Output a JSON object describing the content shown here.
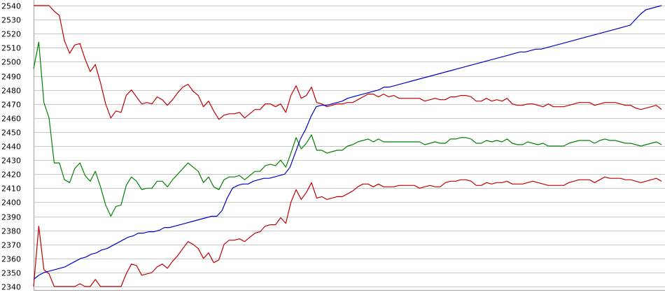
{
  "chart_data": {
    "type": "line",
    "title": "",
    "xlabel": "",
    "ylabel": "",
    "ylim": [
      2340,
      2540
    ],
    "y_ticks": [
      2340,
      2350,
      2360,
      2370,
      2380,
      2390,
      2400,
      2410,
      2420,
      2430,
      2440,
      2450,
      2460,
      2470,
      2480,
      2490,
      2500,
      2510,
      2520,
      2530,
      2540
    ],
    "x_range": [
      0,
      127
    ],
    "grid": "horizontal",
    "legend": "none",
    "series": [
      {
        "color": "#c00000",
        "role": "upper",
        "values": [
          2540,
          2540,
          2540,
          2540,
          2536,
          2533,
          2515,
          2506,
          2512,
          2513,
          2502,
          2493,
          2498,
          2485,
          2470,
          2460,
          2465,
          2464,
          2476,
          2480,
          2475,
          2470,
          2471,
          2470,
          2475,
          2473,
          2469,
          2473,
          2478,
          2482,
          2484,
          2479,
          2476,
          2468,
          2472,
          2465,
          2459,
          2462,
          2463,
          2463,
          2464,
          2460,
          2463,
          2466,
          2466,
          2470,
          2470,
          2468,
          2470,
          2464,
          2476,
          2483,
          2474,
          2476,
          2482,
          2471,
          2470,
          2468,
          2469,
          2470,
          2470,
          2471,
          2471,
          2473,
          2475,
          2477,
          2477,
          2475,
          2477,
          2475,
          2476,
          2474,
          2474,
          2474,
          2474,
          2474,
          2472,
          2473,
          2474,
          2473,
          2473,
          2475,
          2475,
          2476,
          2476,
          2475,
          2472,
          2472,
          2474,
          2472,
          2473,
          2472,
          2474,
          2470,
          2469,
          2469,
          2470,
          2470,
          2469,
          2468,
          2470,
          2468,
          2468,
          2468,
          2469,
          2470,
          2471,
          2471,
          2471,
          2469,
          2470,
          2471,
          2471,
          2471,
          2470,
          2469,
          2469,
          2467,
          2466,
          2467,
          2468,
          2469,
          2466
        ]
      },
      {
        "color": "#008000",
        "role": "middle",
        "values": [
          2495,
          2514,
          2471,
          2460,
          2428,
          2428,
          2416,
          2414,
          2424,
          2428,
          2419,
          2415,
          2422,
          2411,
          2398,
          2390,
          2397,
          2398,
          2412,
          2418,
          2415,
          2409,
          2410,
          2410,
          2415,
          2415,
          2411,
          2416,
          2420,
          2424,
          2428,
          2425,
          2422,
          2414,
          2418,
          2411,
          2409,
          2416,
          2418,
          2418,
          2419,
          2416,
          2419,
          2422,
          2422,
          2426,
          2427,
          2426,
          2430,
          2425,
          2435,
          2446,
          2438,
          2442,
          2448,
          2437,
          2437,
          2435,
          2436,
          2437,
          2437,
          2440,
          2441,
          2443,
          2444,
          2445,
          2443,
          2445,
          2443,
          2443,
          2443,
          2443,
          2443,
          2443,
          2443,
          2443,
          2441,
          2442,
          2443,
          2442,
          2442,
          2445,
          2445,
          2446,
          2446,
          2445,
          2442,
          2442,
          2444,
          2443,
          2444,
          2443,
          2445,
          2442,
          2441,
          2441,
          2443,
          2442,
          2441,
          2442,
          2440,
          2440,
          2440,
          2440,
          2442,
          2443,
          2444,
          2444,
          2444,
          2442,
          2444,
          2445,
          2444,
          2444,
          2443,
          2442,
          2442,
          2441,
          2440,
          2441,
          2442,
          2443,
          2441
        ]
      },
      {
        "color": "#c00000",
        "role": "lower",
        "values": [
          2340,
          2383,
          2352,
          2349,
          2340,
          2340,
          2340,
          2340,
          2340,
          2342,
          2340,
          2340,
          2345,
          2340,
          2340,
          2340,
          2340,
          2340,
          2349,
          2356,
          2355,
          2348,
          2349,
          2350,
          2354,
          2356,
          2353,
          2358,
          2362,
          2367,
          2372,
          2370,
          2367,
          2360,
          2364,
          2357,
          2359,
          2370,
          2373,
          2373,
          2374,
          2372,
          2375,
          2378,
          2379,
          2383,
          2384,
          2384,
          2389,
          2385,
          2400,
          2409,
          2402,
          2407,
          2414,
          2403,
          2404,
          2402,
          2403,
          2404,
          2404,
          2406,
          2408,
          2411,
          2413,
          2413,
          2411,
          2413,
          2411,
          2411,
          2411,
          2412,
          2412,
          2412,
          2412,
          2410,
          2411,
          2412,
          2411,
          2411,
          2414,
          2415,
          2415,
          2416,
          2416,
          2415,
          2412,
          2412,
          2414,
          2413,
          2414,
          2414,
          2415,
          2413,
          2413,
          2413,
          2414,
          2415,
          2414,
          2413,
          2412,
          2412,
          2412,
          2412,
          2414,
          2415,
          2416,
          2416,
          2416,
          2414,
          2416,
          2418,
          2417,
          2417,
          2417,
          2416,
          2416,
          2415,
          2414,
          2415,
          2416,
          2417,
          2415
        ]
      },
      {
        "color": "#0000c0",
        "role": "trend",
        "values": [
          2345,
          2348,
          2350,
          2351,
          2352,
          2353,
          2354,
          2356,
          2358,
          2360,
          2361,
          2363,
          2364,
          2366,
          2367,
          2369,
          2371,
          2373,
          2375,
          2376,
          2378,
          2378,
          2379,
          2379,
          2380,
          2382,
          2382,
          2383,
          2384,
          2385,
          2386,
          2387,
          2388,
          2389,
          2390,
          2390,
          2394,
          2403,
          2410,
          2412,
          2413,
          2413,
          2415,
          2416,
          2417,
          2417,
          2418,
          2419,
          2420,
          2425,
          2435,
          2445,
          2452,
          2461,
          2468,
          2469,
          2469,
          2470,
          2471,
          2472,
          2474,
          2475,
          2476,
          2477,
          2478,
          2479,
          2480,
          2482,
          2482,
          2483,
          2484,
          2485,
          2486,
          2487,
          2488,
          2489,
          2490,
          2491,
          2492,
          2493,
          2494,
          2495,
          2496,
          2497,
          2498,
          2499,
          2500,
          2501,
          2502,
          2503,
          2504,
          2505,
          2506,
          2507,
          2507,
          2508,
          2509,
          2509,
          2510,
          2511,
          2512,
          2513,
          2514,
          2515,
          2516,
          2517,
          2518,
          2519,
          2520,
          2521,
          2522,
          2523,
          2524,
          2525,
          2526,
          2530,
          2534,
          2537,
          2538,
          2539,
          2540
        ]
      }
    ]
  }
}
